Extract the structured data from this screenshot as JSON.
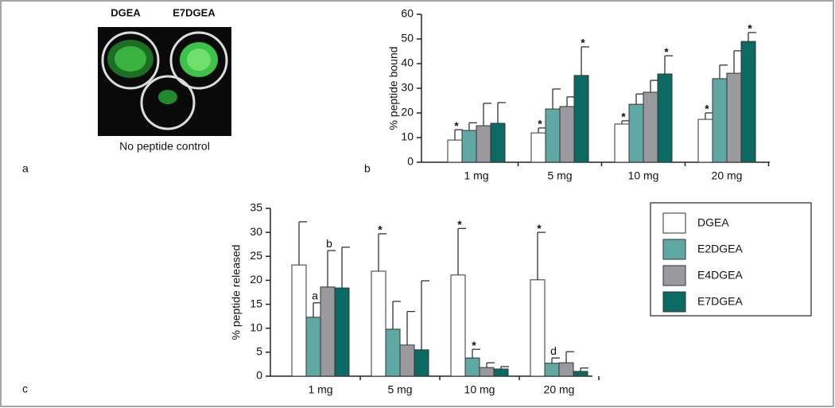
{
  "panel_labels": [
    "a",
    "b",
    "c"
  ],
  "image_panel": {
    "labels": [
      "DGEA",
      "E7DGEA"
    ],
    "caption": "No peptide control"
  },
  "chart_data": [
    {
      "type": "bar",
      "y_label": "% peptide bound",
      "categories": [
        "1 mg",
        "5 mg",
        "10 mg",
        "20 mg"
      ],
      "ylim": [
        0,
        60
      ],
      "yticks": [
        0,
        10,
        20,
        30,
        40,
        50,
        60
      ],
      "series": [
        {
          "color": "#ffffff",
          "values": [
            9,
            11.9,
            15.5,
            17.4
          ],
          "errors": [
            4.2,
            2,
            1.3,
            2.6
          ]
        },
        {
          "color": "#5fa8a3",
          "values": [
            12.9,
            21.6,
            23.5,
            33.9
          ],
          "errors": [
            3.1,
            8.1,
            4.2,
            5.5
          ]
        },
        {
          "color": "#9a9a9e",
          "values": [
            14.8,
            22.6,
            28.4,
            36.1
          ],
          "errors": [
            9.1,
            3.9,
            4.8,
            9.1
          ]
        },
        {
          "color": "#0b6b63",
          "values": [
            15.8,
            35.2,
            35.8,
            49
          ],
          "errors": [
            8.4,
            11.6,
            7.4,
            3.6
          ]
        }
      ],
      "annotations": [
        "*",
        "*",
        "*",
        "*",
        "*",
        "*",
        "*"
      ]
    },
    {
      "type": "bar",
      "y_label": "% peptide released",
      "categories": [
        "1 mg",
        "5 mg",
        "10 mg",
        "20 mg"
      ],
      "ylim": [
        0,
        35
      ],
      "yticks": [
        0,
        5,
        10,
        15,
        20,
        25,
        30,
        35
      ],
      "legend": "right",
      "series": [
        {
          "name": "DGEA",
          "color": "#ffffff",
          "values": [
            23.2,
            21.9,
            21.1,
            20.1
          ],
          "errors": [
            9,
            7.8,
            9.7,
            9.9
          ]
        },
        {
          "name": "E2DGEA",
          "color": "#5fa8a3",
          "values": [
            12.3,
            9.8,
            3.8,
            2.7
          ],
          "errors": [
            3,
            5.8,
            1.8,
            1.1
          ]
        },
        {
          "name": "E4DGEA",
          "color": "#9a9a9e",
          "values": [
            18.6,
            6.5,
            1.8,
            2.8
          ],
          "errors": [
            7.6,
            7,
            1,
            2.3
          ]
        },
        {
          "name": "E7DGEA",
          "color": "#0b6b63",
          "values": [
            18.4,
            5.5,
            1.5,
            1
          ],
          "errors": [
            8.5,
            14.4,
            0.5,
            0.7
          ]
        }
      ],
      "annotations": [
        "a",
        "b",
        "*",
        "*",
        "*",
        "*",
        "d"
      ]
    }
  ]
}
